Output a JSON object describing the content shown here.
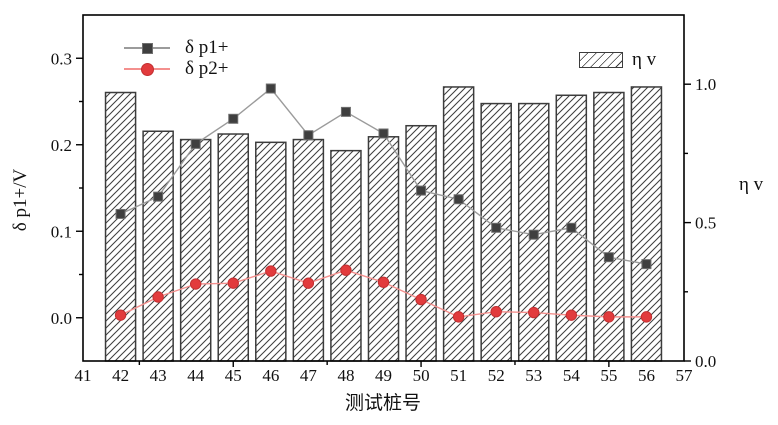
{
  "chart_data": {
    "type": "bar+line",
    "xlabel": "测试桩号",
    "ylabel_left": "δ p1+/V",
    "ylabel_right": "η v",
    "xlim": [
      41,
      57
    ],
    "ylim_left": [
      -0.05,
      0.35
    ],
    "ylim_right": [
      0,
      1.25
    ],
    "grid": false,
    "legend_position": {
      "lines": "top-left",
      "bars": "top-right"
    },
    "categories": [
      42,
      43,
      44,
      45,
      46,
      47,
      48,
      49,
      50,
      51,
      52,
      53,
      54,
      55,
      56
    ],
    "series": [
      {
        "name": "δ p1+",
        "type": "line",
        "axis": "left",
        "marker": "square",
        "marker_color": "#3f3f3f",
        "line_color": "#9b9b9b",
        "values": [
          0.12,
          0.14,
          0.201,
          0.23,
          0.265,
          0.211,
          0.238,
          0.213,
          0.147,
          0.137,
          0.104,
          0.096,
          0.104,
          0.07,
          0.062
        ]
      },
      {
        "name": "δ p2+",
        "type": "line",
        "axis": "left",
        "marker": "circle",
        "marker_color": "#e23b3d",
        "line_color": "#f4908e",
        "values": [
          0.003,
          0.024,
          0.039,
          0.04,
          0.054,
          0.04,
          0.055,
          0.041,
          0.021,
          0.001,
          0.007,
          0.006,
          0.003,
          0.001,
          0.001
        ]
      },
      {
        "name": "η v",
        "type": "bar",
        "axis": "right",
        "hatch": "diagonal",
        "edge_color": "#3c3c3c",
        "fill": "#ffffff",
        "bar_width_units": 0.8,
        "values": [
          0.97,
          0.83,
          0.8,
          0.82,
          0.79,
          0.8,
          0.76,
          0.81,
          0.85,
          0.99,
          0.93,
          0.93,
          0.96,
          0.97,
          0.99
        ]
      }
    ],
    "x_axis": {
      "labels": [
        "41",
        "42",
        "43",
        "44",
        "45",
        "46",
        "47",
        "48",
        "49",
        "50",
        "51",
        "52",
        "53",
        "54",
        "55",
        "56",
        "57"
      ],
      "label_values": [
        41,
        42,
        43,
        44,
        45,
        46,
        47,
        48,
        49,
        50,
        51,
        52,
        53,
        54,
        55,
        56,
        57
      ],
      "major_ticks": [
        45,
        50,
        55
      ],
      "minor_ticks": [
        42.5,
        47.5,
        52.5
      ]
    },
    "left_axis": {
      "major_ticks": [
        {
          "v": 0.0,
          "label": "0.0"
        },
        {
          "v": 0.1,
          "label": "0.1"
        },
        {
          "v": 0.2,
          "label": "0.2"
        },
        {
          "v": 0.3,
          "label": "0.3"
        }
      ],
      "minor_ticks": [
        0.05,
        0.15,
        0.25
      ]
    },
    "right_axis": {
      "major_ticks": [
        {
          "v": 0.0,
          "label": "0.0"
        },
        {
          "v": 0.5,
          "label": "0.5"
        },
        {
          "v": 1.0,
          "label": "1.0"
        }
      ],
      "minor_ticks": [
        0.25,
        0.75
      ]
    },
    "colors": {
      "axis": "#000000",
      "text": "#111111",
      "hatch": "#3c3c3c"
    }
  }
}
